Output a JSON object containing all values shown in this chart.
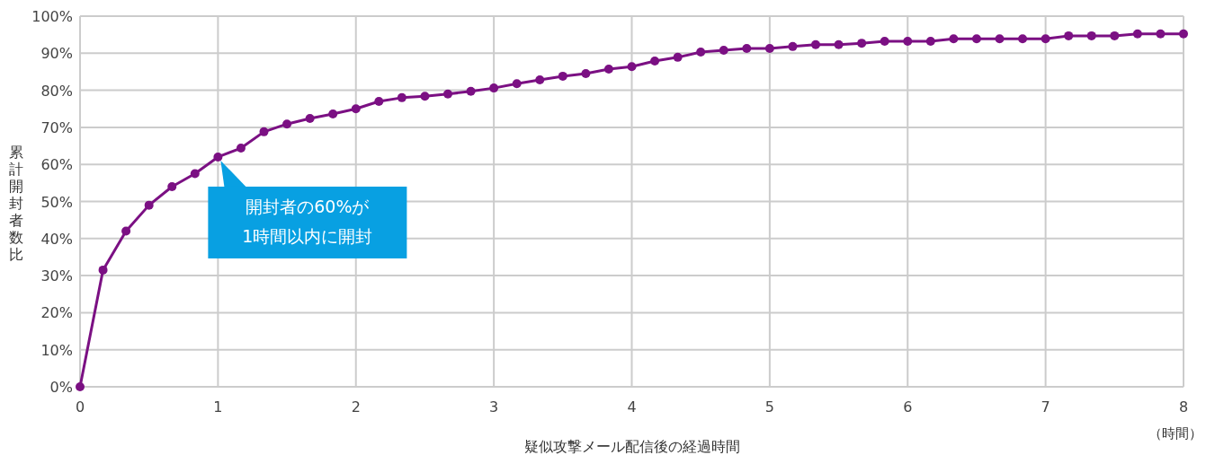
{
  "chart_data": {
    "type": "line",
    "ylabel": "累計開封者数比",
    "xlabel": "疑似攻撃メール配信後の経過時間",
    "annotations": [
      {
        "text": "開封者の60%が\n1時間以内に開封",
        "x": 1,
        "y": 62
      },
      "（時間）"
    ],
    "x": [
      0,
      0.1667,
      0.3333,
      0.5,
      0.6667,
      0.8333,
      1,
      1.1667,
      1.3333,
      1.5,
      1.6667,
      1.8333,
      2,
      2.1667,
      2.3333,
      2.5,
      2.6667,
      2.8333,
      3,
      3.1667,
      3.3333,
      3.5,
      3.6667,
      3.8333,
      4,
      4.1667,
      4.3333,
      4.5,
      4.6667,
      4.8333,
      5,
      5.1667,
      5.3333,
      5.5,
      5.6667,
      5.8333,
      6,
      6.1667,
      6.3333,
      6.5,
      6.6667,
      6.8333,
      7,
      7.1667,
      7.3333,
      7.5,
      7.6667,
      7.8333,
      8
    ],
    "series": [
      {
        "color": "#7b1083",
        "values": [
          0,
          31.5,
          42,
          49,
          54,
          57.5,
          62,
          64.4,
          68.8,
          70.9,
          72.4,
          73.6,
          75,
          77,
          78,
          78.4,
          79,
          79.7,
          80.6,
          81.8,
          82.8,
          83.8,
          84.5,
          85.7,
          86.4,
          87.9,
          88.9,
          90.3,
          90.8,
          91.3,
          91.3,
          91.8,
          92.3,
          92.3,
          92.7,
          93.2,
          93.2,
          93.2,
          93.9,
          93.9,
          93.9,
          93.9,
          93.9,
          94.7,
          94.7,
          94.7,
          95.2,
          95.2,
          95.2
        ]
      }
    ],
    "xlim": [
      0,
      8
    ],
    "xticks": [
      0,
      1,
      2,
      3,
      4,
      5,
      6,
      7,
      8
    ],
    "ylim": [
      0,
      100
    ],
    "yticks": [
      {
        "value": 0,
        "label": "0%"
      },
      {
        "value": 10,
        "label": "10%"
      },
      {
        "value": 20,
        "label": "20%"
      },
      {
        "value": 30,
        "label": "30%"
      },
      {
        "value": 40,
        "label": "40%"
      },
      {
        "value": 50,
        "label": "50%"
      },
      {
        "value": 60,
        "label": "60%"
      },
      {
        "value": 70,
        "label": "70%"
      },
      {
        "value": 80,
        "label": "80%"
      },
      {
        "value": 90,
        "label": "90%"
      },
      {
        "value": 100,
        "label": "100%"
      }
    ],
    "grid": true,
    "marker": "circle",
    "line_style": "solid"
  }
}
